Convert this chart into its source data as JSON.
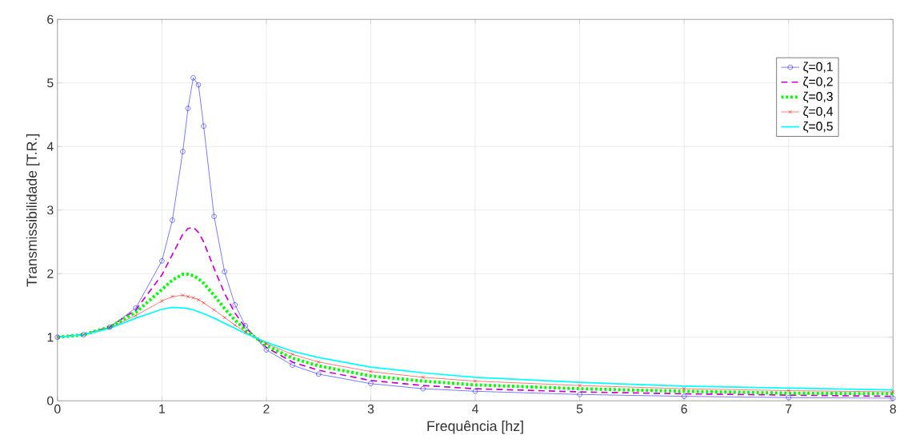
{
  "chart_data": {
    "type": "line",
    "xlabel": "Frequência [hz]",
    "ylabel": "Transmissibilidade [T.R.]",
    "xlim": [
      0,
      8
    ],
    "ylim": [
      0,
      6
    ],
    "xticks": [
      0,
      1,
      2,
      3,
      4,
      5,
      6,
      7,
      8
    ],
    "yticks": [
      0,
      1,
      2,
      3,
      4,
      5,
      6
    ],
    "grid": true,
    "legend": "top right",
    "x": [
      0,
      0.25,
      0.5,
      0.75,
      1.0,
      1.1,
      1.2,
      1.25,
      1.3,
      1.35,
      1.4,
      1.5,
      1.6,
      1.7,
      1.8,
      2.0,
      2.25,
      2.5,
      3,
      3.5,
      4,
      5,
      6,
      7,
      8
    ],
    "series": [
      {
        "name": "ζ=0,1",
        "color": "#0000ff",
        "marker": "circle",
        "line_style": "solid",
        "values": [
          1,
          1.04,
          1.16,
          1.46,
          2.2,
          2.84,
          3.92,
          4.6,
          5.08,
          4.97,
          4.32,
          2.9,
          2.03,
          1.51,
          1.18,
          0.8,
          0.56,
          0.42,
          0.27,
          0.19,
          0.15,
          0.1,
          0.07,
          0.05,
          0.04
        ]
      },
      {
        "name": "ζ=0,2",
        "color": "#cc00cc",
        "marker": "none",
        "line_style": "dashed",
        "values": [
          1,
          1.04,
          1.16,
          1.43,
          1.98,
          2.3,
          2.62,
          2.71,
          2.73,
          2.65,
          2.5,
          2.08,
          1.69,
          1.38,
          1.15,
          0.84,
          0.61,
          0.48,
          0.32,
          0.24,
          0.19,
          0.14,
          0.11,
          0.09,
          0.07
        ]
      },
      {
        "name": "ζ=0,3",
        "color": "#00ff00",
        "marker": "none",
        "line_style": "dotted",
        "values": [
          1,
          1.04,
          1.16,
          1.39,
          1.75,
          1.9,
          1.99,
          1.99,
          1.97,
          1.92,
          1.85,
          1.66,
          1.45,
          1.27,
          1.11,
          0.87,
          0.67,
          0.55,
          0.39,
          0.31,
          0.25,
          0.19,
          0.15,
          0.12,
          0.11
        ]
      },
      {
        "name": "ζ=0,4",
        "color": "#ff0000",
        "marker": "cross",
        "line_style": "solid",
        "values": [
          1,
          1.04,
          1.15,
          1.34,
          1.57,
          1.64,
          1.66,
          1.64,
          1.62,
          1.59,
          1.54,
          1.43,
          1.31,
          1.19,
          1.08,
          0.9,
          0.73,
          0.61,
          0.46,
          0.37,
          0.31,
          0.24,
          0.19,
          0.16,
          0.14
        ]
      },
      {
        "name": "ζ=0,5",
        "color": "#00ffff",
        "marker": "none",
        "line_style": "solid",
        "values": [
          1,
          1.04,
          1.14,
          1.3,
          1.44,
          1.47,
          1.46,
          1.45,
          1.43,
          1.4,
          1.37,
          1.3,
          1.22,
          1.14,
          1.06,
          0.92,
          0.78,
          0.68,
          0.53,
          0.44,
          0.37,
          0.29,
          0.23,
          0.2,
          0.17
        ]
      }
    ]
  }
}
